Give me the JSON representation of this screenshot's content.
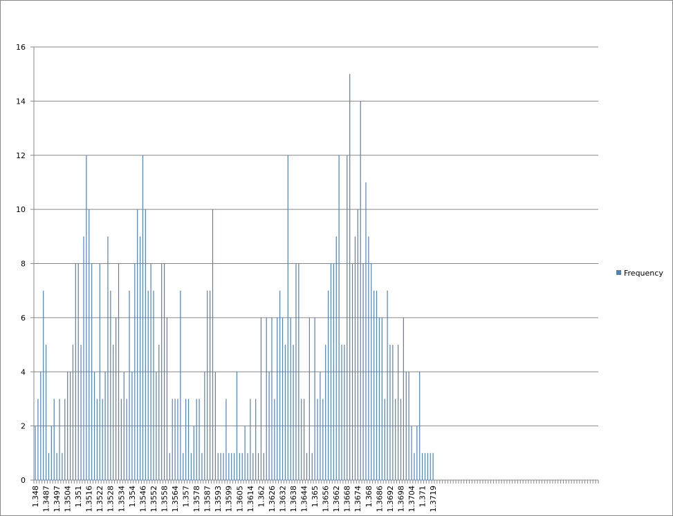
{
  "chart_data": {
    "type": "bar",
    "categories": [
      "1.348",
      null,
      null,
      null,
      "1.3487",
      null,
      null,
      null,
      "1.3497",
      null,
      null,
      null,
      "1.3504",
      null,
      null,
      null,
      "1.351",
      null,
      null,
      null,
      "1.3516",
      null,
      null,
      null,
      "1.3522",
      null,
      null,
      null,
      "1.3528",
      null,
      null,
      null,
      "1.3534",
      null,
      null,
      null,
      "1.354",
      null,
      null,
      null,
      "1.3546",
      null,
      null,
      null,
      "1.3552",
      null,
      null,
      null,
      "1.3558",
      null,
      null,
      null,
      "1.3564",
      null,
      null,
      null,
      "1.357",
      null,
      null,
      null,
      "1.3578",
      null,
      null,
      null,
      "1.3587",
      null,
      null,
      null,
      "1.3593",
      null,
      null,
      null,
      "1.3599",
      null,
      null,
      null,
      "1.3605",
      null,
      null,
      null,
      "1.3614",
      null,
      null,
      null,
      "1.362",
      null,
      null,
      null,
      "1.3626",
      null,
      null,
      null,
      "1.3632",
      null,
      null,
      null,
      "1.3638",
      null,
      null,
      null,
      "1.3644",
      null,
      null,
      null,
      "1.365",
      null,
      null,
      null,
      "1.3656",
      null,
      null,
      null,
      "1.3662",
      null,
      null,
      null,
      "1.3668",
      null,
      null,
      null,
      "1.3674",
      null,
      null,
      null,
      "1.368",
      null,
      null,
      null,
      "1.3686",
      null,
      null,
      null,
      "1.3692",
      null,
      null,
      null,
      "1.3698",
      null,
      null,
      null,
      "1.3704",
      null,
      null,
      null,
      "1.371",
      null,
      null,
      null,
      "1.3719",
      null,
      null,
      null,
      null,
      null,
      null,
      null,
      null,
      null,
      null,
      null,
      null,
      null,
      null,
      null,
      null,
      null,
      null,
      null,
      null,
      null,
      null,
      null,
      null,
      null,
      null,
      null,
      null,
      null,
      null,
      null,
      null,
      null,
      null,
      null,
      null,
      null,
      null,
      null,
      null,
      null,
      null,
      null,
      null,
      null,
      null,
      null,
      null,
      null,
      null,
      null,
      null,
      null,
      null,
      null,
      null,
      null,
      null,
      null,
      null,
      null
    ],
    "series": [
      {
        "name": "Frequency",
        "color": "#4f81bd",
        "values": [
          2,
          3,
          4,
          7,
          5,
          1,
          2,
          3,
          1,
          3,
          1,
          3,
          4,
          4,
          5,
          8,
          8,
          5,
          9,
          12,
          10,
          8,
          4,
          3,
          8,
          3,
          4,
          9,
          7,
          5,
          6,
          8,
          3,
          4,
          3,
          7,
          4,
          8,
          10,
          9,
          12,
          10,
          7,
          8,
          7,
          4,
          5,
          8,
          8,
          6,
          1,
          3,
          3,
          3,
          7,
          1,
          3,
          3,
          1,
          2,
          3,
          3,
          1,
          4,
          7,
          7,
          10,
          4,
          1,
          1,
          1,
          3,
          1,
          1,
          1,
          4,
          1,
          1,
          2,
          1,
          3,
          1,
          3,
          1,
          6,
          1,
          6,
          4,
          6,
          3,
          6,
          7,
          6,
          5,
          12,
          6,
          5,
          8,
          8,
          3,
          3,
          1,
          6,
          1,
          6,
          3,
          4,
          3,
          5,
          7,
          8,
          8,
          9,
          12,
          5,
          5,
          12,
          15,
          8,
          9,
          10,
          14,
          8,
          11,
          9,
          8,
          7,
          7,
          6,
          6,
          3,
          7,
          5,
          5,
          3,
          5,
          3,
          6,
          4,
          4,
          2,
          1,
          2,
          4,
          1,
          1,
          1,
          1,
          1,
          null,
          null,
          null,
          null,
          null,
          null,
          null,
          null,
          null,
          null,
          null,
          null,
          null,
          null,
          null,
          null,
          null,
          null,
          null,
          null,
          null,
          null,
          null,
          null,
          null,
          null,
          null,
          null,
          null,
          null,
          null,
          null,
          null,
          null,
          null,
          null,
          null,
          null,
          null,
          null,
          null,
          null,
          null,
          null,
          null,
          null,
          null,
          null,
          null,
          null,
          null,
          null,
          null,
          null,
          null,
          null,
          null,
          null,
          null,
          null,
          null
        ]
      }
    ],
    "ylim": [
      0,
      16
    ],
    "yticks": [
      0,
      2,
      4,
      6,
      8,
      10,
      12,
      14,
      16
    ],
    "grid": true,
    "legend": "right"
  }
}
